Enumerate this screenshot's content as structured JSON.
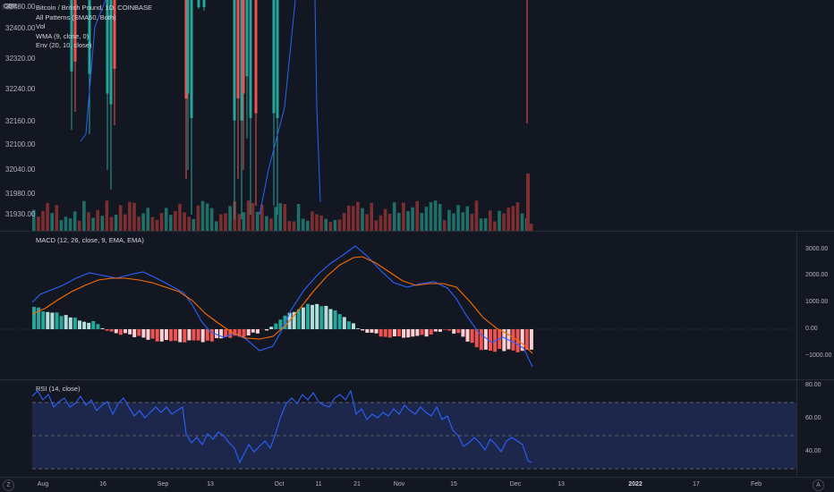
{
  "currency_badge": "GBP",
  "main_legend": {
    "title": "Bitcoin / British Pound, 1D, COINBASE",
    "lines": [
      "All Patterns (SMA50, Both)",
      "Vol",
      "WMA (9, close, 0)",
      "Env (20, 10, close)"
    ]
  },
  "price_axis_left": [
    "32480.00",
    "32400.00",
    "32320.00",
    "32240.00",
    "32160.00",
    "32100.00",
    "32040.00",
    "31980.00",
    "31930.00"
  ],
  "macd": {
    "legend": "MACD (12, 26, close, 9, EMA, EMA)",
    "axis": [
      "3000.00",
      "2000.00",
      "1000.00",
      "0.00",
      "−1000.00"
    ]
  },
  "rsi": {
    "legend": "RSI (14, close)",
    "axis": [
      "80.00",
      "60.00",
      "40.00"
    ]
  },
  "time_axis": [
    {
      "label": "Aug",
      "bold": false
    },
    {
      "label": "16",
      "bold": false
    },
    {
      "label": "Sep",
      "bold": false
    },
    {
      "label": "13",
      "bold": false
    },
    {
      "label": "Oct",
      "bold": false
    },
    {
      "label": "11",
      "bold": false
    },
    {
      "label": "21",
      "bold": false
    },
    {
      "label": "Nov",
      "bold": false
    },
    {
      "label": "15",
      "bold": false
    },
    {
      "label": "Dec",
      "bold": false
    },
    {
      "label": "13",
      "bold": false
    },
    {
      "label": "2022",
      "bold": true
    },
    {
      "label": "17",
      "bold": false
    },
    {
      "label": "Feb",
      "bold": false
    }
  ],
  "corner_left": "Z",
  "corner_right": "A",
  "colors": {
    "background": "#131722",
    "up": "#26a69a",
    "down": "#ef5350",
    "macd_line": "#2962ff",
    "signal_line": "#ff6d00",
    "rsi_line": "#7e57c2",
    "rsi_band": "#1e2a52"
  }
}
